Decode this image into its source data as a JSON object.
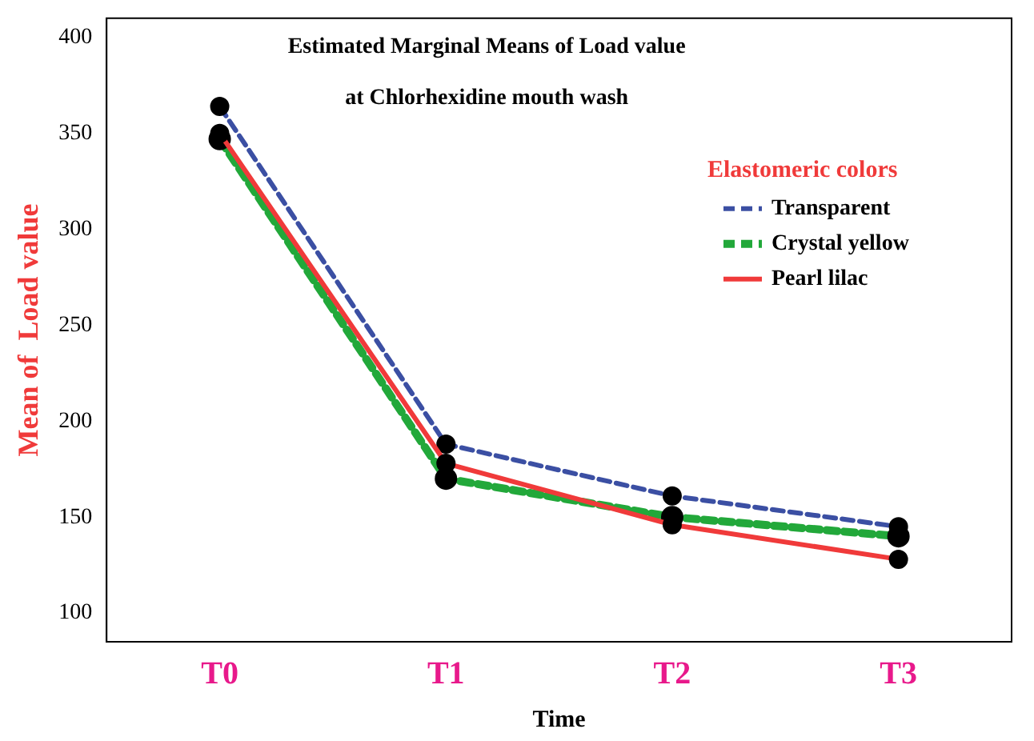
{
  "chart_data": {
    "type": "line",
    "title": "Estimated Marginal Means of Load value",
    "subtitle": "at Chlorhexidine mouth wash",
    "xlabel": "Time",
    "ylabel": "Mean of  Load value",
    "legend_title": "Elastomeric colors",
    "categories": [
      "T0",
      "T1",
      "T2",
      "T3"
    ],
    "series": [
      {
        "name": "Transparent",
        "color": "#3b4fa3",
        "line_style": "dashed",
        "values": [
          364,
          188,
          161,
          145
        ]
      },
      {
        "name": "Crystal yellow",
        "color": "#22a83a",
        "line_style": "dashed",
        "values": [
          347,
          170,
          150,
          140
        ]
      },
      {
        "name": "Pearl lilac",
        "color": "#f03a3a",
        "line_style": "solid",
        "values": [
          350,
          178,
          146,
          128
        ]
      }
    ],
    "ylim": [
      85,
      410
    ],
    "yticks": [
      100,
      150,
      200,
      250,
      300,
      350,
      400
    ],
    "grid": false,
    "legend": "top right",
    "marker": "circle"
  }
}
